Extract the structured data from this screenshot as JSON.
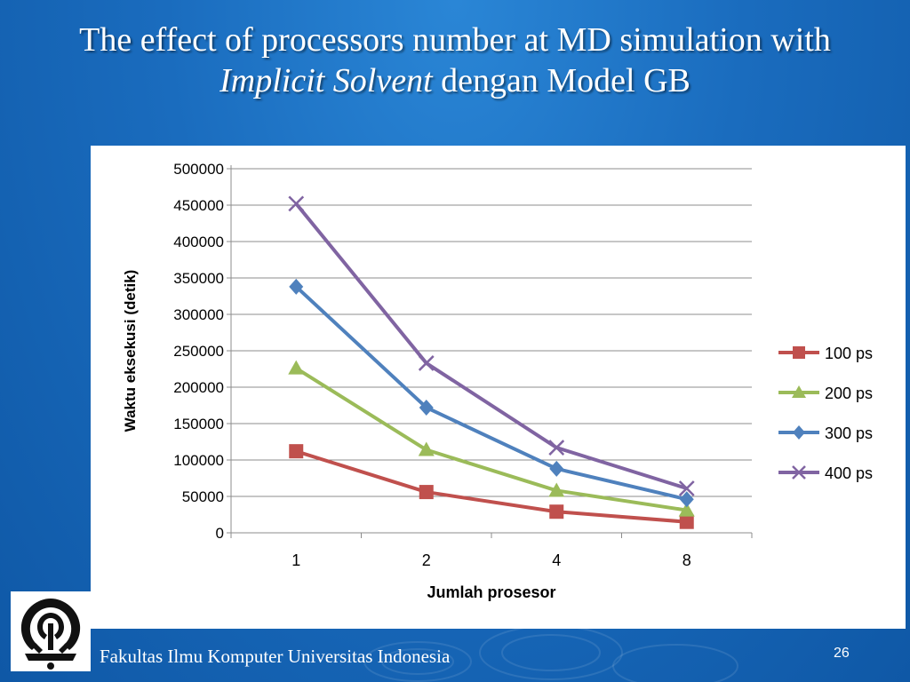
{
  "slide": {
    "title_part1": "The effect of processors number at MD simulation with ",
    "title_italic": "Implicit Solvent",
    "title_part2": " dengan Model GB",
    "footer": "Fakultas Ilmu Komputer Universitas Indonesia",
    "page_number": "26",
    "logo_icon": "university-seal-icon",
    "background_color": "#1a6cbe"
  },
  "chart_data": {
    "type": "line",
    "categories": [
      "1",
      "2",
      "4",
      "8"
    ],
    "xlabel": "Jumlah prosesor",
    "ylabel": "Waktu eksekusi (detik)",
    "ylim": [
      0,
      500000
    ],
    "yticks": [
      "0",
      "50000",
      "100000",
      "150000",
      "200000",
      "250000",
      "300000",
      "350000",
      "400000",
      "450000",
      "500000"
    ],
    "grid": true,
    "legend_position": "right",
    "series": [
      {
        "name": "100 ps",
        "color": "#c0504d",
        "marker": "square",
        "values": [
          112000,
          56000,
          29000,
          15000
        ]
      },
      {
        "name": "200 ps",
        "color": "#9bbb59",
        "marker": "triangle",
        "values": [
          226000,
          114000,
          58000,
          31000
        ]
      },
      {
        "name": "300 ps",
        "color": "#4f81bd",
        "marker": "diamond",
        "values": [
          338000,
          172000,
          88000,
          46000
        ]
      },
      {
        "name": "400 ps",
        "color": "#8064a2",
        "marker": "x",
        "values": [
          452000,
          233000,
          117000,
          61000
        ]
      }
    ]
  }
}
